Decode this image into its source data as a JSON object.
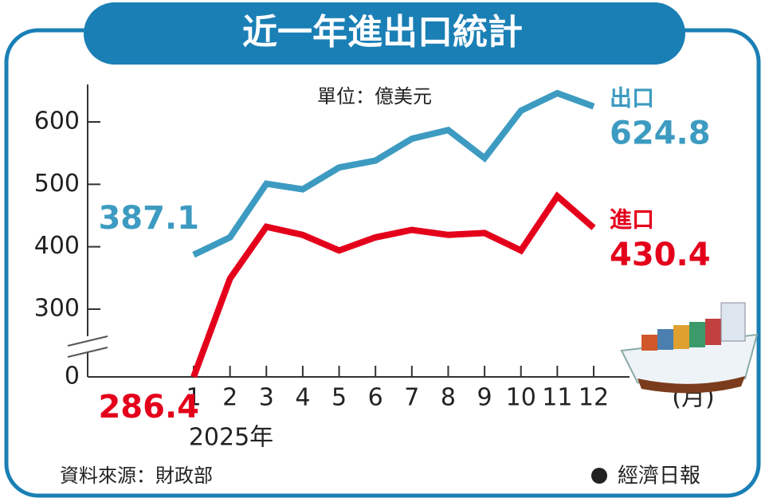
{
  "chart_data": {
    "type": "line",
    "title": "近一年進出口統計",
    "subtitle": "單位：億美元",
    "x_label": "2025年",
    "x_unit": "(月)",
    "source": "資料來源：財政部",
    "brand": "經濟日報",
    "categories": [
      "1",
      "2",
      "3",
      "4",
      "5",
      "6",
      "7",
      "8",
      "9",
      "10",
      "11",
      "12"
    ],
    "series": [
      {
        "name": "出口",
        "color": "#3d9bc1",
        "values": [
          387.1,
          415,
          501,
          492,
          527,
          538,
          573,
          587,
          542,
          618,
          646,
          624.8
        ]
      },
      {
        "name": "進口",
        "color": "#e4001b",
        "values": [
          286.4,
          349,
          432,
          419,
          394,
          415,
          427,
          419,
          422,
          394,
          481,
          430.4
        ]
      }
    ],
    "ylim": [
      0,
      660
    ],
    "yticks": [
      0,
      300,
      400,
      500,
      600
    ],
    "y_axis_break": true,
    "grid": false
  }
}
